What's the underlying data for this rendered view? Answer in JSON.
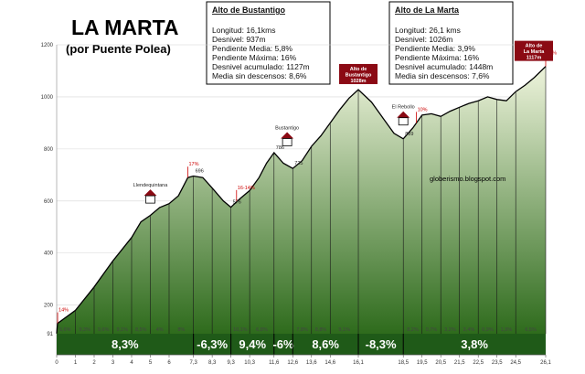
{
  "header": {
    "title": "LA MARTA",
    "subtitle": "(por Puente Polea)"
  },
  "box_bustantigo": {
    "heading": "Alto de Bustantigo",
    "lines": [
      "Longitud: 16,1kms",
      "Desnivel: 937m",
      "Pendiente Media: 5,8%",
      "Pendiente Máxima: 16%",
      "Desnivel acumulado: 1127m",
      "Media sin descensos:  8,6%"
    ]
  },
  "box_marta": {
    "heading": "Alto de La Marta",
    "lines": [
      "Longitud: 26,1 kms",
      "Desnivel: 1026m",
      "Pendiente Media: 3,9%",
      "Pendiente Máxima: 16%",
      "Desnivel acumulado: 1448m",
      "Media sin descensos: 7,6%"
    ]
  },
  "watermark": "globerismo.blogspot.com",
  "colors": {
    "fill_top": "#eef4dc",
    "fill_bottom": "#2e6b1c",
    "bar": "#1f5a18",
    "peak_box": "#8b0a14",
    "accent_red": "#cc0000"
  },
  "chart_data": {
    "type": "area",
    "xlabel": "",
    "ylabel": "",
    "xlim": [
      0,
      26.1
    ],
    "ylim": [
      90,
      1200
    ],
    "y_ticks": [
      200,
      400,
      600,
      800,
      1000,
      1200
    ],
    "y_tick_labels": [
      "200",
      "400",
      "600",
      "800",
      "1000",
      "1200"
    ],
    "baseline_label": "91",
    "x_ticks": [
      0,
      1,
      2,
      3,
      4,
      5,
      6,
      7.3,
      8.3,
      9.3,
      10.3,
      11.6,
      12.6,
      13.6,
      14.6,
      16.1,
      18.5,
      19.5,
      20.5,
      21.5,
      22.5,
      23.5,
      24.5,
      26.1
    ],
    "x_tick_labels": [
      "0",
      "1",
      "2",
      "3",
      "4",
      "5",
      "6",
      "7,3",
      "8,3",
      "9,3",
      "10,3",
      "11,6",
      "12,6",
      "13,6",
      "14,6",
      "16,1",
      "18,5",
      "19,5",
      "20,5",
      "21,5",
      "22,5",
      "23,5",
      "24,5",
      "26,1"
    ],
    "profile": [
      {
        "x": 0,
        "y": 91
      },
      {
        "x": 0.05,
        "y": 130
      },
      {
        "x": 1,
        "y": 180
      },
      {
        "x": 2,
        "y": 270
      },
      {
        "x": 3,
        "y": 370
      },
      {
        "x": 4,
        "y": 460
      },
      {
        "x": 4.5,
        "y": 520
      },
      {
        "x": 5,
        "y": 545
      },
      {
        "x": 5.5,
        "y": 575
      },
      {
        "x": 6,
        "y": 590
      },
      {
        "x": 6.5,
        "y": 620
      },
      {
        "x": 7,
        "y": 690
      },
      {
        "x": 7.3,
        "y": 696
      },
      {
        "x": 7.8,
        "y": 690
      },
      {
        "x": 8.3,
        "y": 650
      },
      {
        "x": 8.9,
        "y": 600
      },
      {
        "x": 9.3,
        "y": 576
      },
      {
        "x": 9.8,
        "y": 610
      },
      {
        "x": 10.3,
        "y": 640
      },
      {
        "x": 10.8,
        "y": 690
      },
      {
        "x": 11.2,
        "y": 745
      },
      {
        "x": 11.6,
        "y": 786
      },
      {
        "x": 12.1,
        "y": 745
      },
      {
        "x": 12.6,
        "y": 725
      },
      {
        "x": 13.1,
        "y": 755
      },
      {
        "x": 13.6,
        "y": 810
      },
      {
        "x": 14.1,
        "y": 850
      },
      {
        "x": 14.6,
        "y": 900
      },
      {
        "x": 15.1,
        "y": 950
      },
      {
        "x": 15.6,
        "y": 995
      },
      {
        "x": 16.1,
        "y": 1028
      },
      {
        "x": 16.8,
        "y": 980
      },
      {
        "x": 17.4,
        "y": 920
      },
      {
        "x": 18,
        "y": 860
      },
      {
        "x": 18.5,
        "y": 839
      },
      {
        "x": 19,
        "y": 880
      },
      {
        "x": 19.5,
        "y": 930
      },
      {
        "x": 20,
        "y": 935
      },
      {
        "x": 20.5,
        "y": 925
      },
      {
        "x": 21,
        "y": 945
      },
      {
        "x": 21.5,
        "y": 960
      },
      {
        "x": 22,
        "y": 975
      },
      {
        "x": 22.5,
        "y": 985
      },
      {
        "x": 23,
        "y": 1000
      },
      {
        "x": 23.5,
        "y": 990
      },
      {
        "x": 24,
        "y": 985
      },
      {
        "x": 24.5,
        "y": 1020
      },
      {
        "x": 25,
        "y": 1045
      },
      {
        "x": 25.5,
        "y": 1075
      },
      {
        "x": 26.1,
        "y": 1117
      }
    ],
    "segment_grades": [
      {
        "x": 0.45,
        "label": "5,6%"
      },
      {
        "x": 1.5,
        "label": "9,3%"
      },
      {
        "x": 2.5,
        "label": "9,6%"
      },
      {
        "x": 3.5,
        "label": "9,1%"
      },
      {
        "x": 4.5,
        "label": "8,5%"
      },
      {
        "x": 5.5,
        "label": "4%"
      },
      {
        "x": 6.65,
        "label": "8%"
      },
      {
        "x": 9.8,
        "label": "10,1%"
      },
      {
        "x": 10.95,
        "label": "6,8%"
      },
      {
        "x": 13.1,
        "label": "7,8%"
      },
      {
        "x": 14.1,
        "label": "8,8%"
      },
      {
        "x": 15.35,
        "label": "9,1%"
      },
      {
        "x": 19.0,
        "label": "8,2%"
      },
      {
        "x": 20.0,
        "label": "0,7%"
      },
      {
        "x": 21.0,
        "label": "3,2%"
      },
      {
        "x": 22.0,
        "label": "3,4%"
      },
      {
        "x": 23.0,
        "label": "0,9%"
      },
      {
        "x": 24.0,
        "label": "1,9%"
      },
      {
        "x": 25.3,
        "label": "6,5%"
      }
    ],
    "section_grades": [
      {
        "x0": 0,
        "x1": 7.3,
        "label": "8,3%"
      },
      {
        "x0": 7.3,
        "x1": 9.3,
        "label": "-6,3%"
      },
      {
        "x0": 9.3,
        "x1": 11.6,
        "label": "9,4%"
      },
      {
        "x0": 11.6,
        "x1": 12.6,
        "label": "-6%"
      },
      {
        "x0": 12.6,
        "x1": 16.1,
        "label": "8,6%"
      },
      {
        "x0": 16.1,
        "x1": 18.5,
        "label": "-8,3%"
      },
      {
        "x0": 18.5,
        "x1": 26.1,
        "label": "3,8%"
      }
    ],
    "point_labels": [
      {
        "x": 7.3,
        "y": 696,
        "label": "696"
      },
      {
        "x": 9.3,
        "y": 576,
        "label": "576"
      },
      {
        "x": 11.6,
        "y": 786,
        "label": "786"
      },
      {
        "x": 12.6,
        "y": 725,
        "label": "725"
      },
      {
        "x": 18.5,
        "y": 839,
        "label": "839"
      }
    ],
    "places": [
      {
        "x": 5.0,
        "y": 620,
        "label": "Llendequintana"
      },
      {
        "x": 12.3,
        "y": 840,
        "label": "Bustantigo"
      },
      {
        "x": 18.5,
        "y": 920,
        "label": "El Rebollo"
      }
    ],
    "max_grades": [
      {
        "x": 0.05,
        "y": 130,
        "label": "14%"
      },
      {
        "x": 7.0,
        "y": 690,
        "label": "17%"
      },
      {
        "x": 9.6,
        "y": 600,
        "label": "16-14%"
      },
      {
        "x": 19.2,
        "y": 900,
        "label": "10%"
      },
      {
        "x": 26.1,
        "y": 1117,
        "label": "12%"
      }
    ],
    "peaks": [
      {
        "x": 16.1,
        "y": 1028,
        "lines": [
          "Alto de",
          "Bustantigo",
          "1028m"
        ]
      },
      {
        "x": 26.1,
        "y": 1117,
        "lines": [
          "Alto de",
          "La Marta",
          "1117m"
        ]
      }
    ]
  }
}
